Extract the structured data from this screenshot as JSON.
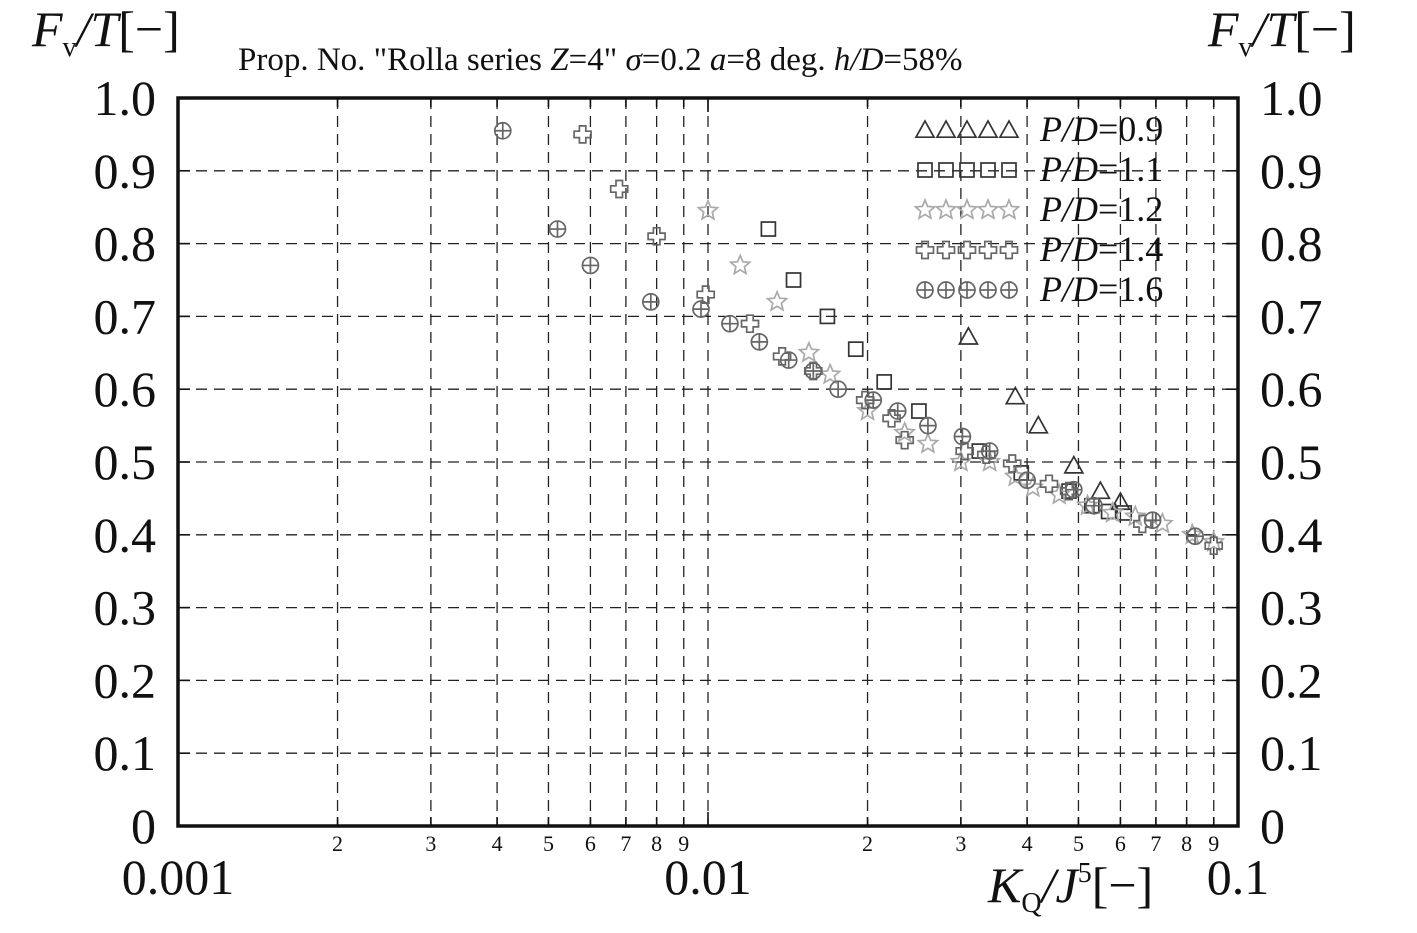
{
  "chart_data": {
    "type": "scatter",
    "title": "Prop. No. \"Rolla series Z=4\" σ=0.2  a=8  deg.  h/D=58%",
    "title_parts": {
      "prefix": "Prop. No. \"Rolla series ",
      "z_var": "Z",
      "z_val": "=4\" ",
      "sigma_var": "σ",
      "sigma_val": "=0.2  ",
      "a_var": "a",
      "a_val": "=8  deg.  ",
      "hd_var": "h/D",
      "hd_val": "=58%"
    },
    "ylabel": {
      "main": "F",
      "sub": "v",
      "rest": "/T",
      "unit": "[−]"
    },
    "xlabel": {
      "k": "K",
      "ksub": "Q",
      "slash": "/",
      "j": "J",
      "sup": "5",
      "unit": "[−]"
    },
    "x_scale": "log",
    "xlim": [
      0.001,
      0.1
    ],
    "ylim": [
      0,
      1.0
    ],
    "y_ticks": [
      "0",
      "0.1",
      "0.2",
      "0.3",
      "0.4",
      "0.5",
      "0.6",
      "0.7",
      "0.8",
      "0.9",
      "1.0"
    ],
    "x_major_tick_labels": [
      "0.001",
      "0.01",
      "0.1"
    ],
    "x_minor_tick_labels": [
      "2",
      "3",
      "4",
      "5",
      "6",
      "7",
      "8",
      "9"
    ],
    "grid": true,
    "legend_position": "top-right",
    "series": [
      {
        "name": "P/D=0.9",
        "legend": {
          "var": "P/D",
          "val": "=0.9"
        },
        "marker": "triangle",
        "color": "#333333",
        "points": [
          [
            0.031,
            0.672
          ],
          [
            0.038,
            0.59
          ],
          [
            0.042,
            0.55
          ],
          [
            0.049,
            0.495
          ],
          [
            0.055,
            0.46
          ],
          [
            0.06,
            0.445
          ]
        ]
      },
      {
        "name": "P/D=1.1",
        "legend": {
          "var": "P/D",
          "val": "=1.1"
        },
        "marker": "square",
        "color": "#333333",
        "points": [
          [
            0.013,
            0.82
          ],
          [
            0.0145,
            0.75
          ],
          [
            0.0168,
            0.7
          ],
          [
            0.019,
            0.655
          ],
          [
            0.0215,
            0.61
          ],
          [
            0.025,
            0.57
          ],
          [
            0.0325,
            0.515
          ],
          [
            0.039,
            0.485
          ],
          [
            0.048,
            0.46
          ],
          [
            0.053,
            0.44
          ],
          [
            0.057,
            0.432
          ],
          [
            0.061,
            0.43
          ]
        ]
      },
      {
        "name": "P/D=1.2",
        "legend": {
          "var": "P/D",
          "val": "=1.2"
        },
        "marker": "star",
        "color": "#aaaaaa",
        "points": [
          [
            0.01,
            0.845
          ],
          [
            0.0115,
            0.77
          ],
          [
            0.0135,
            0.72
          ],
          [
            0.0155,
            0.65
          ],
          [
            0.017,
            0.62
          ],
          [
            0.02,
            0.57
          ],
          [
            0.0235,
            0.54
          ],
          [
            0.026,
            0.525
          ],
          [
            0.03,
            0.5
          ],
          [
            0.034,
            0.5
          ],
          [
            0.038,
            0.48
          ],
          [
            0.041,
            0.465
          ],
          [
            0.046,
            0.455
          ],
          [
            0.052,
            0.44
          ],
          [
            0.058,
            0.43
          ],
          [
            0.064,
            0.425
          ],
          [
            0.072,
            0.415
          ],
          [
            0.082,
            0.4
          ],
          [
            0.09,
            0.39
          ]
        ]
      },
      {
        "name": "P/D=1.4",
        "legend": {
          "var": "P/D",
          "val": "=1.4"
        },
        "marker": "cross",
        "color": "#666666",
        "points": [
          [
            0.0058,
            0.95
          ],
          [
            0.0068,
            0.875
          ],
          [
            0.008,
            0.81
          ],
          [
            0.0099,
            0.73
          ],
          [
            0.012,
            0.69
          ],
          [
            0.0138,
            0.645
          ],
          [
            0.0158,
            0.625
          ],
          [
            0.0198,
            0.585
          ],
          [
            0.0222,
            0.56
          ],
          [
            0.0235,
            0.53
          ],
          [
            0.0305,
            0.515
          ],
          [
            0.0335,
            0.51
          ],
          [
            0.0375,
            0.498
          ],
          [
            0.044,
            0.47
          ],
          [
            0.048,
            0.46
          ],
          [
            0.066,
            0.415
          ],
          [
            0.09,
            0.385
          ]
        ]
      },
      {
        "name": "P/D=1.6",
        "legend": {
          "var": "P/D",
          "val": "=1.6"
        },
        "marker": "circle-plus",
        "color": "#666666",
        "points": [
          [
            0.0041,
            0.955
          ],
          [
            0.0052,
            0.82
          ],
          [
            0.006,
            0.77
          ],
          [
            0.0078,
            0.72
          ],
          [
            0.0097,
            0.71
          ],
          [
            0.011,
            0.69
          ],
          [
            0.0125,
            0.665
          ],
          [
            0.0142,
            0.64
          ],
          [
            0.0158,
            0.625
          ],
          [
            0.0176,
            0.6
          ],
          [
            0.0205,
            0.585
          ],
          [
            0.0228,
            0.57
          ],
          [
            0.026,
            0.55
          ],
          [
            0.0302,
            0.535
          ],
          [
            0.034,
            0.515
          ],
          [
            0.04,
            0.475
          ],
          [
            0.049,
            0.462
          ],
          [
            0.0535,
            0.44
          ],
          [
            0.069,
            0.42
          ],
          [
            0.083,
            0.398
          ]
        ]
      }
    ]
  }
}
